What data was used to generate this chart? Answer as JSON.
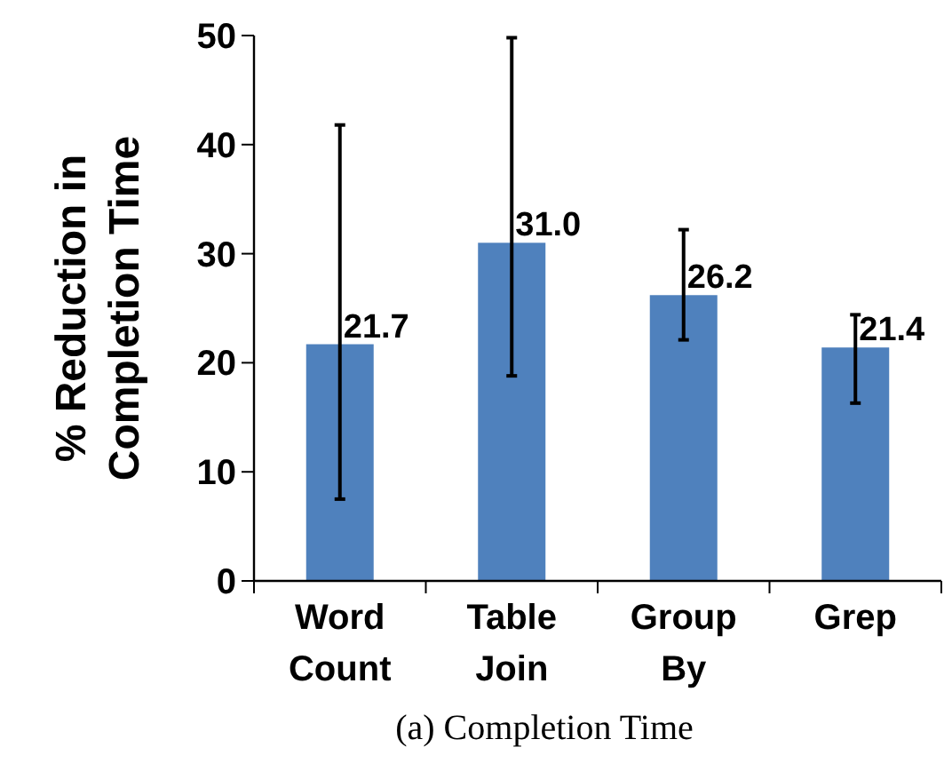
{
  "chart_data": {
    "type": "bar",
    "categories": [
      "Word Count",
      "Table Join",
      "Group By",
      "Grep"
    ],
    "values": [
      21.7,
      31.0,
      26.2,
      21.4
    ],
    "color": "#4f81bd",
    "errors": [
      [
        7.5,
        41.8
      ],
      [
        18.8,
        49.8
      ],
      [
        22.1,
        32.2
      ],
      [
        16.3,
        24.4
      ]
    ],
    "value_labels": [
      "21.7",
      "31.0",
      "26.2",
      "21.4"
    ],
    "ylabel": "% Reduction in Completion Time",
    "ylim": [
      0,
      50
    ],
    "yticks": [
      0,
      10,
      20,
      30,
      40,
      50
    ],
    "grid": false,
    "annotations": [
      "(a) Completion Time"
    ]
  }
}
